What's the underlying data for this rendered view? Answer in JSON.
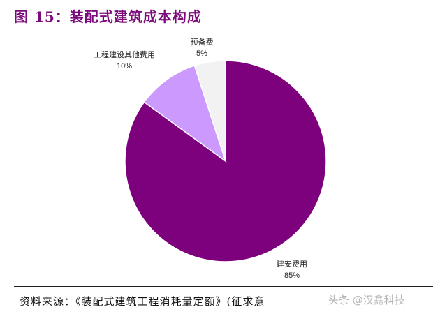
{
  "figure": {
    "title": "图 15：装配式建筑成本构成",
    "source": "资料来源：《装配式建筑工程消耗量定额》(征求意",
    "watermark": "头条 @汉鑫科技"
  },
  "chart_data": {
    "type": "pie",
    "title": "图 15：装配式建筑成本构成",
    "slices": [
      {
        "label": "建安费用",
        "value": 85,
        "value_label": "85%",
        "color": "#7d007d"
      },
      {
        "label": "工程建设其他费用",
        "value": 10,
        "value_label": "10%",
        "color": "#cc99ff"
      },
      {
        "label": "预备费",
        "value": 5,
        "value_label": "5%",
        "color": "#f2f2f2"
      }
    ],
    "start_angle_deg": 0,
    "direction": "clockwise",
    "legend": "none"
  }
}
